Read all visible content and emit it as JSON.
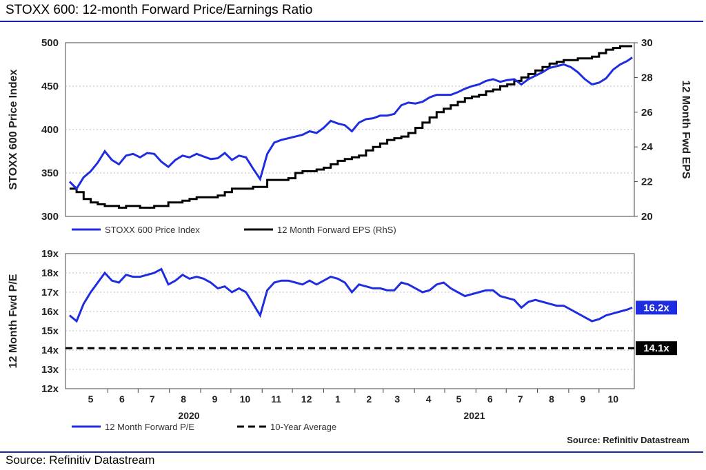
{
  "header": {
    "title": "STOXX 600: 12-month Forward Price/Earnings Ratio"
  },
  "footer": {
    "source": "Source: Refinitiv Datastream"
  },
  "colors": {
    "blue": "#1f2de0",
    "black": "#000000",
    "rule": "#1f1fb0"
  },
  "chart_data": [
    {
      "type": "line",
      "ylabel": "STOXX 600 Price Index",
      "y2label": "12 Month Fwd EPS",
      "ylim": [
        300,
        500
      ],
      "y2lim": [
        20,
        30
      ],
      "yticks": [
        "300",
        "350",
        "400",
        "450",
        "500"
      ],
      "y2ticks": [
        "20",
        "22",
        "24",
        "26",
        "28",
        "30"
      ],
      "grid": true,
      "legend_position": "bottom",
      "series": [
        {
          "name": "STOXX 600 Price Index",
          "axis": "left",
          "x": [
            "2020-04-24",
            "2020-05-01",
            "2020-05-08",
            "2020-05-15",
            "2020-05-22",
            "2020-05-29",
            "2020-06-05",
            "2020-06-12",
            "2020-06-19",
            "2020-06-26",
            "2020-07-03",
            "2020-07-10",
            "2020-07-17",
            "2020-07-24",
            "2020-07-31",
            "2020-08-07",
            "2020-08-14",
            "2020-08-21",
            "2020-08-28",
            "2020-09-04",
            "2020-09-11",
            "2020-09-18",
            "2020-09-25",
            "2020-10-02",
            "2020-10-09",
            "2020-10-16",
            "2020-10-23",
            "2020-10-30",
            "2020-11-06",
            "2020-11-13",
            "2020-11-20",
            "2020-11-27",
            "2020-12-04",
            "2020-12-11",
            "2020-12-18",
            "2020-12-25",
            "2021-01-01",
            "2021-01-08",
            "2021-01-15",
            "2021-01-22",
            "2021-01-29",
            "2021-02-05",
            "2021-02-12",
            "2021-02-19",
            "2021-02-26",
            "2021-03-05",
            "2021-03-12",
            "2021-03-19",
            "2021-03-26",
            "2021-04-02",
            "2021-04-09",
            "2021-04-16",
            "2021-04-23",
            "2021-04-30",
            "2021-05-07",
            "2021-05-14",
            "2021-05-21",
            "2021-05-28",
            "2021-06-04",
            "2021-06-11",
            "2021-06-18",
            "2021-06-25",
            "2021-07-02",
            "2021-07-09",
            "2021-07-16",
            "2021-07-23",
            "2021-07-30",
            "2021-08-06",
            "2021-08-13",
            "2021-08-20",
            "2021-08-27",
            "2021-09-03",
            "2021-09-10",
            "2021-09-17",
            "2021-09-24",
            "2021-10-01",
            "2021-10-08",
            "2021-10-15",
            "2021-10-22",
            "2021-10-29",
            "2021-11-03"
          ],
          "values": [
            340,
            332,
            345,
            352,
            362,
            375,
            365,
            360,
            370,
            372,
            368,
            373,
            372,
            363,
            357,
            365,
            370,
            368,
            372,
            369,
            366,
            367,
            373,
            365,
            370,
            368,
            355,
            343,
            372,
            385,
            388,
            390,
            392,
            394,
            398,
            396,
            402,
            410,
            407,
            405,
            398,
            408,
            412,
            413,
            416,
            416,
            418,
            428,
            431,
            430,
            432,
            437,
            440,
            440,
            440,
            443,
            447,
            450,
            452,
            456,
            458,
            455,
            457,
            458,
            452,
            458,
            462,
            466,
            471,
            473,
            475,
            472,
            466,
            458,
            452,
            454,
            459,
            469,
            475,
            479,
            483
          ]
        },
        {
          "name": "12 Month Forward EPS (RhS)",
          "axis": "right",
          "x": [
            "2020-04-24",
            "2020-05-01",
            "2020-05-08",
            "2020-05-15",
            "2020-05-22",
            "2020-05-29",
            "2020-06-05",
            "2020-06-12",
            "2020-06-19",
            "2020-06-26",
            "2020-07-03",
            "2020-07-10",
            "2020-07-17",
            "2020-07-24",
            "2020-07-31",
            "2020-08-07",
            "2020-08-14",
            "2020-08-21",
            "2020-08-28",
            "2020-09-04",
            "2020-09-11",
            "2020-09-18",
            "2020-09-25",
            "2020-10-02",
            "2020-10-09",
            "2020-10-16",
            "2020-10-23",
            "2020-10-30",
            "2020-11-06",
            "2020-11-13",
            "2020-11-20",
            "2020-11-27",
            "2020-12-04",
            "2020-12-11",
            "2020-12-18",
            "2020-12-25",
            "2021-01-01",
            "2021-01-08",
            "2021-01-15",
            "2021-01-22",
            "2021-01-29",
            "2021-02-05",
            "2021-02-12",
            "2021-02-19",
            "2021-02-26",
            "2021-03-05",
            "2021-03-12",
            "2021-03-19",
            "2021-03-26",
            "2021-04-02",
            "2021-04-09",
            "2021-04-16",
            "2021-04-23",
            "2021-04-30",
            "2021-05-07",
            "2021-05-14",
            "2021-05-21",
            "2021-05-28",
            "2021-06-04",
            "2021-06-11",
            "2021-06-18",
            "2021-06-25",
            "2021-07-02",
            "2021-07-09",
            "2021-07-16",
            "2021-07-23",
            "2021-07-30",
            "2021-08-06",
            "2021-08-13",
            "2021-08-20",
            "2021-08-27",
            "2021-09-03",
            "2021-09-10",
            "2021-09-17",
            "2021-09-24",
            "2021-10-01",
            "2021-10-08",
            "2021-10-15",
            "2021-10-22",
            "2021-10-29",
            "2021-11-03"
          ],
          "values": [
            21.6,
            21.4,
            21.0,
            20.8,
            20.7,
            20.6,
            20.6,
            20.5,
            20.6,
            20.6,
            20.5,
            20.5,
            20.6,
            20.6,
            20.8,
            20.8,
            20.9,
            21.0,
            21.1,
            21.1,
            21.1,
            21.2,
            21.4,
            21.6,
            21.6,
            21.6,
            21.7,
            21.7,
            22.1,
            22.1,
            22.1,
            22.2,
            22.5,
            22.6,
            22.6,
            22.7,
            22.8,
            23.0,
            23.2,
            23.3,
            23.4,
            23.5,
            23.8,
            24.0,
            24.2,
            24.4,
            24.5,
            24.6,
            24.8,
            25.1,
            25.4,
            25.7,
            26.0,
            26.2,
            26.4,
            26.6,
            26.8,
            26.9,
            27.0,
            27.2,
            27.3,
            27.5,
            27.6,
            27.8,
            28.0,
            28.2,
            28.4,
            28.6,
            28.8,
            28.9,
            29.0,
            29.0,
            29.1,
            29.1,
            29.2,
            29.4,
            29.6,
            29.7,
            29.8,
            29.8,
            29.8
          ]
        }
      ]
    },
    {
      "type": "line",
      "ylabel": "12 Month Fwd P/E",
      "ylim": [
        12,
        19
      ],
      "yticks": [
        "12x",
        "13x",
        "14x",
        "15x",
        "16x",
        "17x",
        "18x",
        "19x"
      ],
      "grid": true,
      "legend_position": "bottom",
      "xticks": [
        "5",
        "6",
        "7",
        "8",
        "9",
        "10",
        "11",
        "12",
        "1",
        "2",
        "3",
        "4",
        "5",
        "6",
        "7",
        "8",
        "9",
        "10"
      ],
      "year_labels": [
        "2020",
        "2021"
      ],
      "credit": "Source: Refinitiv Datastream",
      "series": [
        {
          "name": "12 Month Forward P/E",
          "x": [
            "2020-04-24",
            "2020-05-01",
            "2020-05-08",
            "2020-05-15",
            "2020-05-22",
            "2020-05-29",
            "2020-06-05",
            "2020-06-12",
            "2020-06-19",
            "2020-06-26",
            "2020-07-03",
            "2020-07-10",
            "2020-07-17",
            "2020-07-24",
            "2020-07-31",
            "2020-08-07",
            "2020-08-14",
            "2020-08-21",
            "2020-08-28",
            "2020-09-04",
            "2020-09-11",
            "2020-09-18",
            "2020-09-25",
            "2020-10-02",
            "2020-10-09",
            "2020-10-16",
            "2020-10-23",
            "2020-10-30",
            "2020-11-06",
            "2020-11-13",
            "2020-11-20",
            "2020-11-27",
            "2020-12-04",
            "2020-12-11",
            "2020-12-18",
            "2020-12-25",
            "2021-01-01",
            "2021-01-08",
            "2021-01-15",
            "2021-01-22",
            "2021-01-29",
            "2021-02-05",
            "2021-02-12",
            "2021-02-19",
            "2021-02-26",
            "2021-03-05",
            "2021-03-12",
            "2021-03-19",
            "2021-03-26",
            "2021-04-02",
            "2021-04-09",
            "2021-04-16",
            "2021-04-23",
            "2021-04-30",
            "2021-05-07",
            "2021-05-14",
            "2021-05-21",
            "2021-05-28",
            "2021-06-04",
            "2021-06-11",
            "2021-06-18",
            "2021-06-25",
            "2021-07-02",
            "2021-07-09",
            "2021-07-16",
            "2021-07-23",
            "2021-07-30",
            "2021-08-06",
            "2021-08-13",
            "2021-08-20",
            "2021-08-27",
            "2021-09-03",
            "2021-09-10",
            "2021-09-17",
            "2021-09-24",
            "2021-10-01",
            "2021-10-08",
            "2021-10-15",
            "2021-10-22",
            "2021-10-29",
            "2021-11-03"
          ],
          "values": [
            15.8,
            15.5,
            16.4,
            17.0,
            17.5,
            18.0,
            17.6,
            17.5,
            17.9,
            17.8,
            17.8,
            17.9,
            18.0,
            18.2,
            17.4,
            17.6,
            17.9,
            17.7,
            17.8,
            17.7,
            17.5,
            17.2,
            17.3,
            17.0,
            17.2,
            17.0,
            16.4,
            15.8,
            17.1,
            17.5,
            17.6,
            17.6,
            17.5,
            17.4,
            17.6,
            17.4,
            17.6,
            17.8,
            17.7,
            17.5,
            17.0,
            17.4,
            17.3,
            17.2,
            17.2,
            17.1,
            17.1,
            17.5,
            17.4,
            17.2,
            17.0,
            17.1,
            17.4,
            17.5,
            17.2,
            17.0,
            16.8,
            16.9,
            17.0,
            17.1,
            17.1,
            16.8,
            16.7,
            16.6,
            16.2,
            16.5,
            16.6,
            16.5,
            16.4,
            16.3,
            16.3,
            16.1,
            15.9,
            15.7,
            15.5,
            15.6,
            15.8,
            15.9,
            16.0,
            16.1,
            16.2
          ]
        },
        {
          "name": "10-Year Average",
          "style": "dashed",
          "values": [
            14.1
          ]
        }
      ],
      "value_labels": [
        "16.2x",
        "14.1x"
      ]
    }
  ]
}
